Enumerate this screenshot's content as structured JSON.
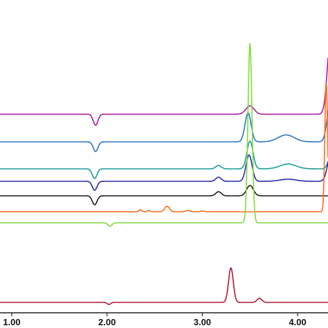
{
  "chart_data": {
    "type": "line",
    "title": "",
    "xlabel": "",
    "ylabel": "",
    "xlim": [
      0.9,
      4.3
    ],
    "grid": false,
    "x_ticks": [
      {
        "value": 1.0,
        "label": "1.00"
      },
      {
        "value": 2.0,
        "label": "2.00"
      },
      {
        "value": 3.0,
        "label": "3.00"
      },
      {
        "value": 4.0,
        "label": "4.00"
      }
    ],
    "series": [
      {
        "color": "#b0179e",
        "baseline": 0,
        "features": [
          {
            "x": 1.88,
            "h": -16,
            "w": 0.035
          },
          {
            "x": 3.5,
            "h": 12,
            "w": 0.06
          },
          {
            "x": 4.35,
            "h": 120,
            "w": 0.05
          }
        ]
      },
      {
        "color": "#2b74c4",
        "baseline": 0,
        "features": [
          {
            "x": 1.88,
            "h": -14,
            "w": 0.035
          },
          {
            "x": 3.48,
            "h": 42,
            "w": 0.045
          },
          {
            "x": 3.88,
            "h": 10,
            "w": 0.12
          },
          {
            "x": 4.35,
            "h": 65,
            "w": 0.05
          }
        ]
      },
      {
        "color": "#1a9c9c",
        "baseline": 0,
        "features": [
          {
            "x": 1.87,
            "h": -14,
            "w": 0.035
          },
          {
            "x": 3.17,
            "h": 5,
            "w": 0.04
          },
          {
            "x": 3.5,
            "h": 40,
            "w": 0.045
          },
          {
            "x": 3.9,
            "h": 7,
            "w": 0.12
          },
          {
            "x": 4.35,
            "h": 20,
            "w": 0.04
          }
        ]
      },
      {
        "color": "#2a2aa8",
        "baseline": 0,
        "features": [
          {
            "x": 1.87,
            "h": -13,
            "w": 0.035
          },
          {
            "x": 3.17,
            "h": 6,
            "w": 0.04
          },
          {
            "x": 3.49,
            "h": 38,
            "w": 0.045
          },
          {
            "x": 3.9,
            "h": 3,
            "w": 0.12
          },
          {
            "x": 4.35,
            "h": 40,
            "w": 0.05
          }
        ]
      },
      {
        "color": "#1a1a1a",
        "baseline": 0,
        "features": [
          {
            "x": 1.87,
            "h": -13,
            "w": 0.035
          },
          {
            "x": 3.17,
            "h": 6,
            "w": 0.04
          },
          {
            "x": 3.5,
            "h": 15,
            "w": 0.05
          }
        ]
      },
      {
        "color": "#ff6a14",
        "baseline": 0,
        "features": [
          {
            "x": 2.35,
            "h": 3,
            "w": 0.02
          },
          {
            "x": 2.44,
            "h": 2,
            "w": 0.02
          },
          {
            "x": 2.63,
            "h": 8,
            "w": 0.035
          },
          {
            "x": 2.85,
            "h": 2,
            "w": 0.03
          },
          {
            "x": 3.0,
            "h": 1,
            "w": 0.03
          },
          {
            "x": 4.3,
            "h": 190,
            "w": 0.02
          }
        ]
      },
      {
        "color": "#7ddc3a",
        "baseline": 0,
        "features": [
          {
            "x": 2.03,
            "h": -5,
            "w": 0.03
          },
          {
            "x": 3.5,
            "h": 260,
            "w": 0.03
          }
        ]
      },
      {
        "color": "#b0163c",
        "baseline": 0,
        "features": [
          {
            "x": 2.02,
            "h": -3,
            "w": 0.025
          },
          {
            "x": 3.3,
            "h": 50,
            "w": 0.035
          },
          {
            "x": 3.6,
            "h": 6,
            "w": 0.035
          }
        ]
      }
    ]
  }
}
